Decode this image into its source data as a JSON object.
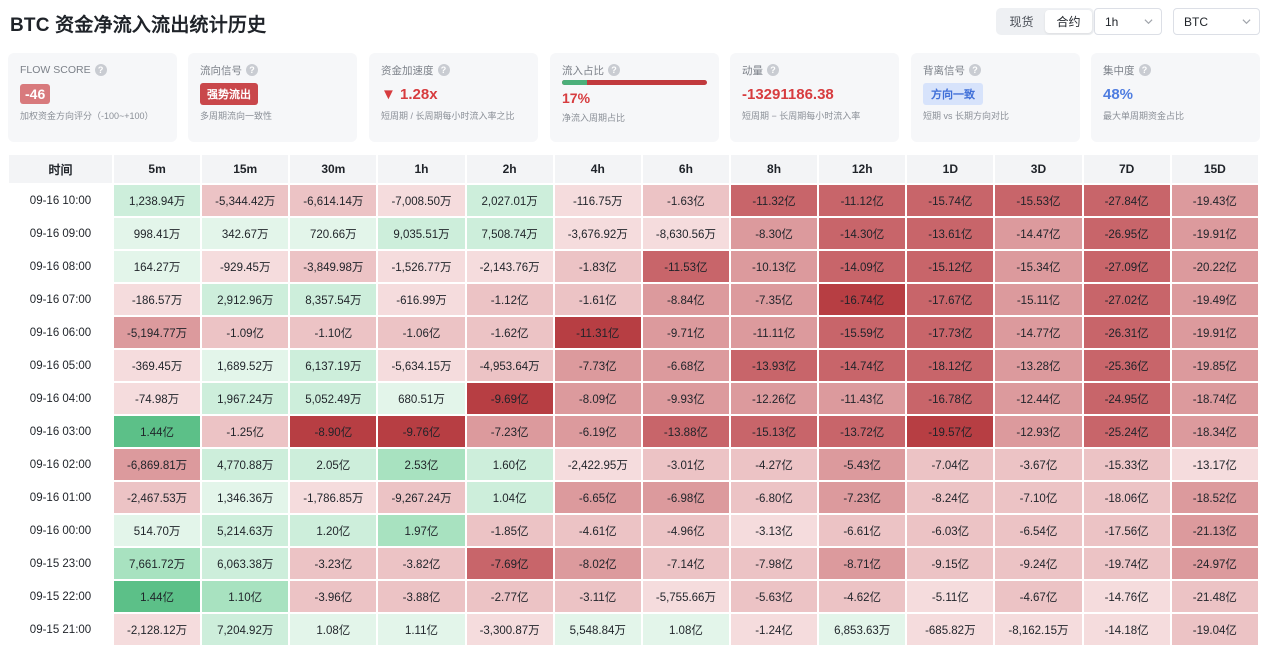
{
  "title": "BTC 资金净流入流出统计历史",
  "market_toggle": {
    "options": [
      "现货",
      "合约"
    ],
    "active": 1
  },
  "interval_select": {
    "value": "1h"
  },
  "symbol_select": {
    "value": "BTC"
  },
  "cards": {
    "flow_score": {
      "label": "FLOW SCORE",
      "value": "-46",
      "sub": "加权资金方向评分（-100~+100）"
    },
    "flow_signal": {
      "label": "流向信号",
      "value": "强势流出",
      "sub": "多周期流向一致性"
    },
    "acceleration": {
      "label": "资金加速度",
      "arrow": "▼",
      "value": "1.28x",
      "sub": "短周期 / 长周期每小时流入率之比"
    },
    "inflow_ratio": {
      "label": "流入占比",
      "value": "17%",
      "fraction": 0.17,
      "sub": "净流入周期占比"
    },
    "momentum": {
      "label": "动量",
      "value": "-13291186.38",
      "sub": "短周期 − 长周期每小时流入率"
    },
    "divergence": {
      "label": "背离信号",
      "value": "方向一致",
      "sub": "短期 vs 长期方向对比"
    },
    "concentration": {
      "label": "集中度",
      "value": "48%",
      "sub": "最大单周期资金占比"
    }
  },
  "colors": {
    "green_strong": "#5cc088",
    "green_mid": "#a8e2c0",
    "green_light": "#cdeedb",
    "green_pale": "#e3f5ea",
    "red_pale": "#f5dcdd",
    "red_light": "#ecc3c5",
    "red_mid": "#dc9a9d",
    "red_dark": "#c8656a",
    "red_deep": "#b73e43"
  },
  "table": {
    "headers": [
      "时间",
      "5m",
      "15m",
      "30m",
      "1h",
      "2h",
      "4h",
      "6h",
      "8h",
      "12h",
      "1D",
      "3D",
      "7D",
      "15D"
    ],
    "rows": [
      {
        "time": "09-16 10:00",
        "cells": [
          [
            "1,238.94万",
            "gl"
          ],
          [
            "-5,344.42万",
            "rl"
          ],
          [
            "-6,614.14万",
            "rl"
          ],
          [
            "-7,008.50万",
            "rp"
          ],
          [
            "2,027.01万",
            "gl"
          ],
          [
            "-116.75万",
            "rp"
          ],
          [
            "-1.63亿",
            "rl"
          ],
          [
            "-11.32亿",
            "rd"
          ],
          [
            "-11.12亿",
            "rd"
          ],
          [
            "-15.74亿",
            "rd"
          ],
          [
            "-15.53亿",
            "rd"
          ],
          [
            "-27.84亿",
            "rd"
          ],
          [
            "-19.43亿",
            "rm"
          ]
        ]
      },
      {
        "time": "09-16 09:00",
        "cells": [
          [
            "998.41万",
            "gp"
          ],
          [
            "342.67万",
            "gp"
          ],
          [
            "720.66万",
            "gp"
          ],
          [
            "9,035.51万",
            "gl"
          ],
          [
            "7,508.74万",
            "gl"
          ],
          [
            "-3,676.92万",
            "rp"
          ],
          [
            "-8,630.56万",
            "rp"
          ],
          [
            "-8.30亿",
            "rm"
          ],
          [
            "-14.30亿",
            "rd"
          ],
          [
            "-13.61亿",
            "rd"
          ],
          [
            "-14.47亿",
            "rm"
          ],
          [
            "-26.95亿",
            "rd"
          ],
          [
            "-19.91亿",
            "rm"
          ]
        ]
      },
      {
        "time": "09-16 08:00",
        "cells": [
          [
            "164.27万",
            "gp"
          ],
          [
            "-929.45万",
            "rp"
          ],
          [
            "-3,849.98万",
            "rl"
          ],
          [
            "-1,526.77万",
            "rp"
          ],
          [
            "-2,143.76万",
            "rp"
          ],
          [
            "-1.83亿",
            "rl"
          ],
          [
            "-11.53亿",
            "rd"
          ],
          [
            "-10.13亿",
            "rm"
          ],
          [
            "-14.09亿",
            "rd"
          ],
          [
            "-15.12亿",
            "rd"
          ],
          [
            "-15.34亿",
            "rm"
          ],
          [
            "-27.09亿",
            "rd"
          ],
          [
            "-20.22亿",
            "rm"
          ]
        ]
      },
      {
        "time": "09-16 07:00",
        "cells": [
          [
            "-186.57万",
            "rp"
          ],
          [
            "2,912.96万",
            "gl"
          ],
          [
            "8,357.54万",
            "gl"
          ],
          [
            "-616.99万",
            "rp"
          ],
          [
            "-1.12亿",
            "rl"
          ],
          [
            "-1.61亿",
            "rl"
          ],
          [
            "-8.84亿",
            "rm"
          ],
          [
            "-7.35亿",
            "rm"
          ],
          [
            "-16.74亿",
            "rx"
          ],
          [
            "-17.67亿",
            "rd"
          ],
          [
            "-15.11亿",
            "rm"
          ],
          [
            "-27.02亿",
            "rd"
          ],
          [
            "-19.49亿",
            "rm"
          ]
        ]
      },
      {
        "time": "09-16 06:00",
        "cells": [
          [
            "-5,194.77万",
            "rm"
          ],
          [
            "-1.09亿",
            "rl"
          ],
          [
            "-1.10亿",
            "rl"
          ],
          [
            "-1.06亿",
            "rl"
          ],
          [
            "-1.62亿",
            "rl"
          ],
          [
            "-11.31亿",
            "rx"
          ],
          [
            "-9.71亿",
            "rm"
          ],
          [
            "-11.11亿",
            "rm"
          ],
          [
            "-15.59亿",
            "rd"
          ],
          [
            "-17.73亿",
            "rd"
          ],
          [
            "-14.77亿",
            "rm"
          ],
          [
            "-26.31亿",
            "rd"
          ],
          [
            "-19.91亿",
            "rm"
          ]
        ]
      },
      {
        "time": "09-16 05:00",
        "cells": [
          [
            "-369.45万",
            "rp"
          ],
          [
            "1,689.52万",
            "gp"
          ],
          [
            "6,137.19万",
            "gl"
          ],
          [
            "-5,634.15万",
            "rp"
          ],
          [
            "-4,953.64万",
            "rl"
          ],
          [
            "-7.73亿",
            "rm"
          ],
          [
            "-6.68亿",
            "rm"
          ],
          [
            "-13.93亿",
            "rd"
          ],
          [
            "-14.74亿",
            "rd"
          ],
          [
            "-18.12亿",
            "rd"
          ],
          [
            "-13.28亿",
            "rm"
          ],
          [
            "-25.36亿",
            "rd"
          ],
          [
            "-19.85亿",
            "rm"
          ]
        ]
      },
      {
        "time": "09-16 04:00",
        "cells": [
          [
            "-74.98万",
            "rp"
          ],
          [
            "1,967.24万",
            "gl"
          ],
          [
            "5,052.49万",
            "gl"
          ],
          [
            "680.51万",
            "gp"
          ],
          [
            "-9.69亿",
            "rx"
          ],
          [
            "-8.09亿",
            "rm"
          ],
          [
            "-9.93亿",
            "rm"
          ],
          [
            "-12.26亿",
            "rm"
          ],
          [
            "-11.43亿",
            "rm"
          ],
          [
            "-16.78亿",
            "rd"
          ],
          [
            "-12.44亿",
            "rm"
          ],
          [
            "-24.95亿",
            "rd"
          ],
          [
            "-18.74亿",
            "rm"
          ]
        ]
      },
      {
        "time": "09-16 03:00",
        "cells": [
          [
            "1.44亿",
            "gs"
          ],
          [
            "-1.25亿",
            "rl"
          ],
          [
            "-8.90亿",
            "rx"
          ],
          [
            "-9.76亿",
            "rx"
          ],
          [
            "-7.23亿",
            "rm"
          ],
          [
            "-6.19亿",
            "rm"
          ],
          [
            "-13.88亿",
            "rd"
          ],
          [
            "-15.13亿",
            "rd"
          ],
          [
            "-13.72亿",
            "rd"
          ],
          [
            "-19.57亿",
            "rx"
          ],
          [
            "-12.93亿",
            "rm"
          ],
          [
            "-25.24亿",
            "rd"
          ],
          [
            "-18.34亿",
            "rm"
          ]
        ]
      },
      {
        "time": "09-16 02:00",
        "cells": [
          [
            "-6,869.81万",
            "rm"
          ],
          [
            "4,770.88万",
            "gl"
          ],
          [
            "2.05亿",
            "gl"
          ],
          [
            "2.53亿",
            "gm"
          ],
          [
            "1.60亿",
            "gl"
          ],
          [
            "-2,422.95万",
            "rp"
          ],
          [
            "-3.01亿",
            "rl"
          ],
          [
            "-4.27亿",
            "rl"
          ],
          [
            "-5.43亿",
            "rm"
          ],
          [
            "-7.04亿",
            "rl"
          ],
          [
            "-3.67亿",
            "rl"
          ],
          [
            "-15.33亿",
            "rl"
          ],
          [
            "-13.17亿",
            "rp"
          ]
        ]
      },
      {
        "time": "09-16 01:00",
        "cells": [
          [
            "-2,467.53万",
            "rl"
          ],
          [
            "1,346.36万",
            "gp"
          ],
          [
            "-1,786.85万",
            "rp"
          ],
          [
            "-9,267.24万",
            "rl"
          ],
          [
            "1.04亿",
            "gl"
          ],
          [
            "-6.65亿",
            "rm"
          ],
          [
            "-6.98亿",
            "rm"
          ],
          [
            "-6.80亿",
            "rl"
          ],
          [
            "-7.23亿",
            "rm"
          ],
          [
            "-8.24亿",
            "rl"
          ],
          [
            "-7.10亿",
            "rl"
          ],
          [
            "-18.06亿",
            "rl"
          ],
          [
            "-18.52亿",
            "rm"
          ]
        ]
      },
      {
        "time": "09-16 00:00",
        "cells": [
          [
            "514.70万",
            "gp"
          ],
          [
            "5,214.63万",
            "gl"
          ],
          [
            "1.20亿",
            "gl"
          ],
          [
            "1.97亿",
            "gm"
          ],
          [
            "-1.85亿",
            "rl"
          ],
          [
            "-4.61亿",
            "rl"
          ],
          [
            "-4.96亿",
            "rl"
          ],
          [
            "-3.13亿",
            "rp"
          ],
          [
            "-6.61亿",
            "rl"
          ],
          [
            "-6.03亿",
            "rl"
          ],
          [
            "-6.54亿",
            "rl"
          ],
          [
            "-17.56亿",
            "rl"
          ],
          [
            "-21.13亿",
            "rm"
          ]
        ]
      },
      {
        "time": "09-15 23:00",
        "cells": [
          [
            "7,661.72万",
            "gm"
          ],
          [
            "6,063.38万",
            "gl"
          ],
          [
            "-3.23亿",
            "rl"
          ],
          [
            "-3.82亿",
            "rl"
          ],
          [
            "-7.69亿",
            "rd"
          ],
          [
            "-8.02亿",
            "rm"
          ],
          [
            "-7.14亿",
            "rl"
          ],
          [
            "-7.98亿",
            "rl"
          ],
          [
            "-8.71亿",
            "rm"
          ],
          [
            "-9.15亿",
            "rl"
          ],
          [
            "-9.24亿",
            "rl"
          ],
          [
            "-19.74亿",
            "rl"
          ],
          [
            "-24.97亿",
            "rm"
          ]
        ]
      },
      {
        "time": "09-15 22:00",
        "cells": [
          [
            "1.44亿",
            "gs"
          ],
          [
            "1.10亿",
            "gm"
          ],
          [
            "-3.96亿",
            "rl"
          ],
          [
            "-3.88亿",
            "rl"
          ],
          [
            "-2.77亿",
            "rl"
          ],
          [
            "-3.11亿",
            "rl"
          ],
          [
            "-5,755.66万",
            "rp"
          ],
          [
            "-5.63亿",
            "rl"
          ],
          [
            "-4.62亿",
            "rl"
          ],
          [
            "-5.11亿",
            "rp"
          ],
          [
            "-4.67亿",
            "rl"
          ],
          [
            "-14.76亿",
            "rp"
          ],
          [
            "-21.48亿",
            "rl"
          ]
        ]
      },
      {
        "time": "09-15 21:00",
        "cells": [
          [
            "-2,128.12万",
            "rp"
          ],
          [
            "7,204.92万",
            "gl"
          ],
          [
            "1.08亿",
            "gp"
          ],
          [
            "1.11亿",
            "gp"
          ],
          [
            "-3,300.87万",
            "rp"
          ],
          [
            "5,548.84万",
            "gp"
          ],
          [
            "1.08亿",
            "gp"
          ],
          [
            "-1.24亿",
            "rp"
          ],
          [
            "6,853.63万",
            "gp"
          ],
          [
            "-685.82万",
            "rp"
          ],
          [
            "-8,162.15万",
            "rp"
          ],
          [
            "-14.18亿",
            "rp"
          ],
          [
            "-19.04亿",
            "rl"
          ]
        ]
      }
    ]
  }
}
